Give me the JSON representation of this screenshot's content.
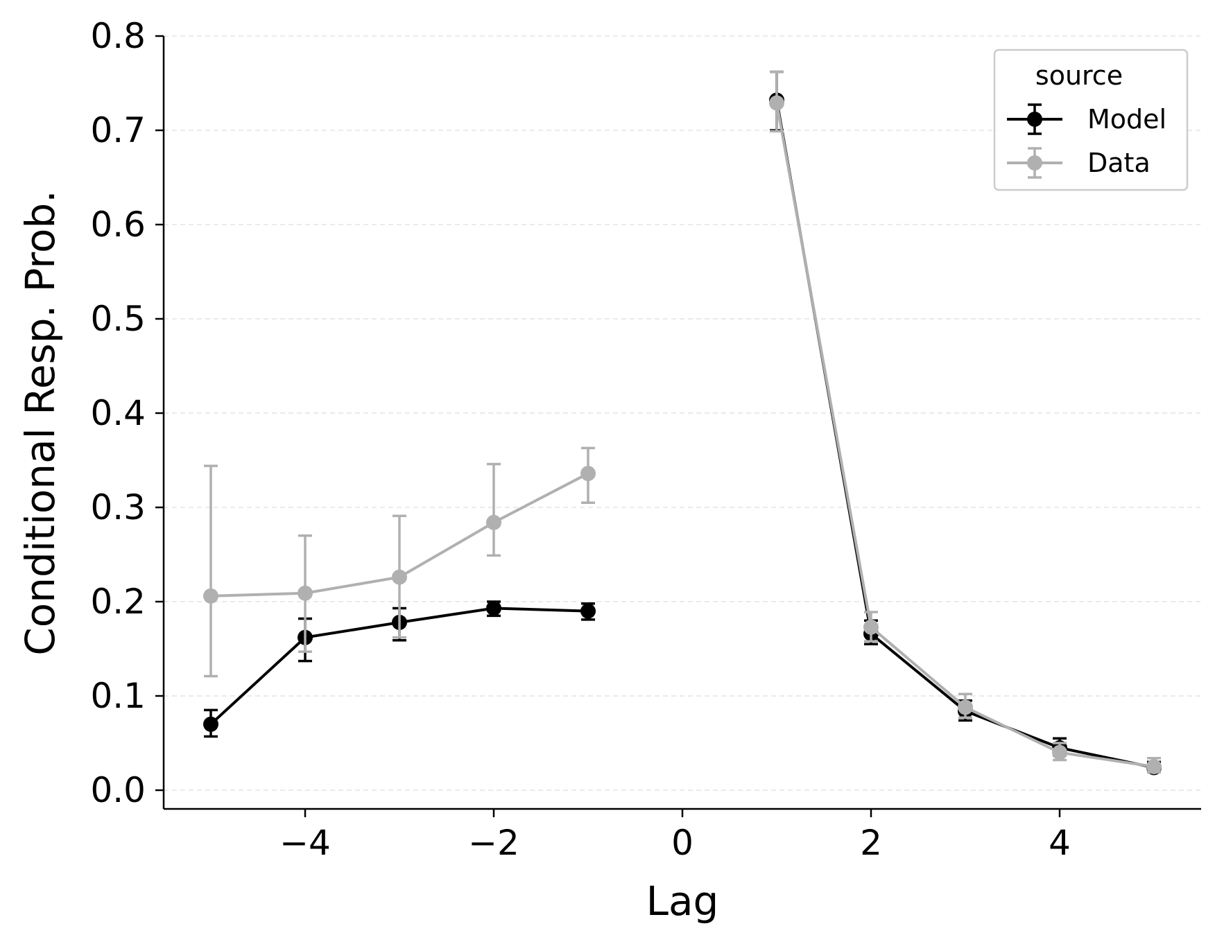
{
  "chart_data": {
    "type": "line",
    "title": "",
    "xlabel": "Lag",
    "ylabel": "Conditional Resp. Prob.",
    "xlim": [
      -5.5,
      5.5
    ],
    "ylim": [
      -0.02,
      0.8
    ],
    "xticks": [
      -4,
      -2,
      0,
      2,
      4
    ],
    "xtick_labels": [
      "−4",
      "−2",
      "0",
      "2",
      "4"
    ],
    "yticks": [
      0.0,
      0.1,
      0.2,
      0.3,
      0.4,
      0.5,
      0.6,
      0.7,
      0.8
    ],
    "ytick_labels": [
      "0.0",
      "0.1",
      "0.2",
      "0.3",
      "0.4",
      "0.5",
      "0.6",
      "0.7",
      "0.8"
    ],
    "grid": "horizontal dashed",
    "legend": {
      "title": "source",
      "position": "top-right"
    },
    "series": [
      {
        "name": "Model",
        "color": "#000000",
        "segments": [
          {
            "x": [
              -5,
              -4,
              -3,
              -2,
              -1
            ],
            "y": [
              0.07,
              0.162,
              0.178,
              0.193,
              0.19
            ],
            "err_low": [
              0.057,
              0.137,
              0.159,
              0.185,
              0.181
            ],
            "err_high": [
              0.085,
              0.182,
              0.193,
              0.2,
              0.198
            ]
          },
          {
            "x": [
              1,
              2,
              3,
              4,
              5
            ],
            "y": [
              0.732,
              0.166,
              0.084,
              0.045,
              0.024
            ],
            "err_low": [
              0.7,
              0.155,
              0.074,
              0.037,
              0.019
            ],
            "err_high": [
              0.762,
              0.18,
              0.095,
              0.055,
              0.03
            ]
          }
        ]
      },
      {
        "name": "Data",
        "color": "#b0b0b0",
        "segments": [
          {
            "x": [
              -5,
              -4,
              -3,
              -2,
              -1
            ],
            "y": [
              0.206,
              0.209,
              0.226,
              0.284,
              0.336
            ],
            "err_low": [
              0.121,
              0.147,
              0.162,
              0.249,
              0.305
            ],
            "err_high": [
              0.344,
              0.27,
              0.291,
              0.346,
              0.363
            ]
          },
          {
            "x": [
              1,
              2,
              3,
              4,
              5
            ],
            "y": [
              0.729,
              0.173,
              0.088,
              0.04,
              0.025
            ],
            "err_low": [
              0.699,
              0.158,
              0.077,
              0.032,
              0.019
            ],
            "err_high": [
              0.762,
              0.189,
              0.102,
              0.05,
              0.034
            ]
          }
        ]
      }
    ]
  }
}
